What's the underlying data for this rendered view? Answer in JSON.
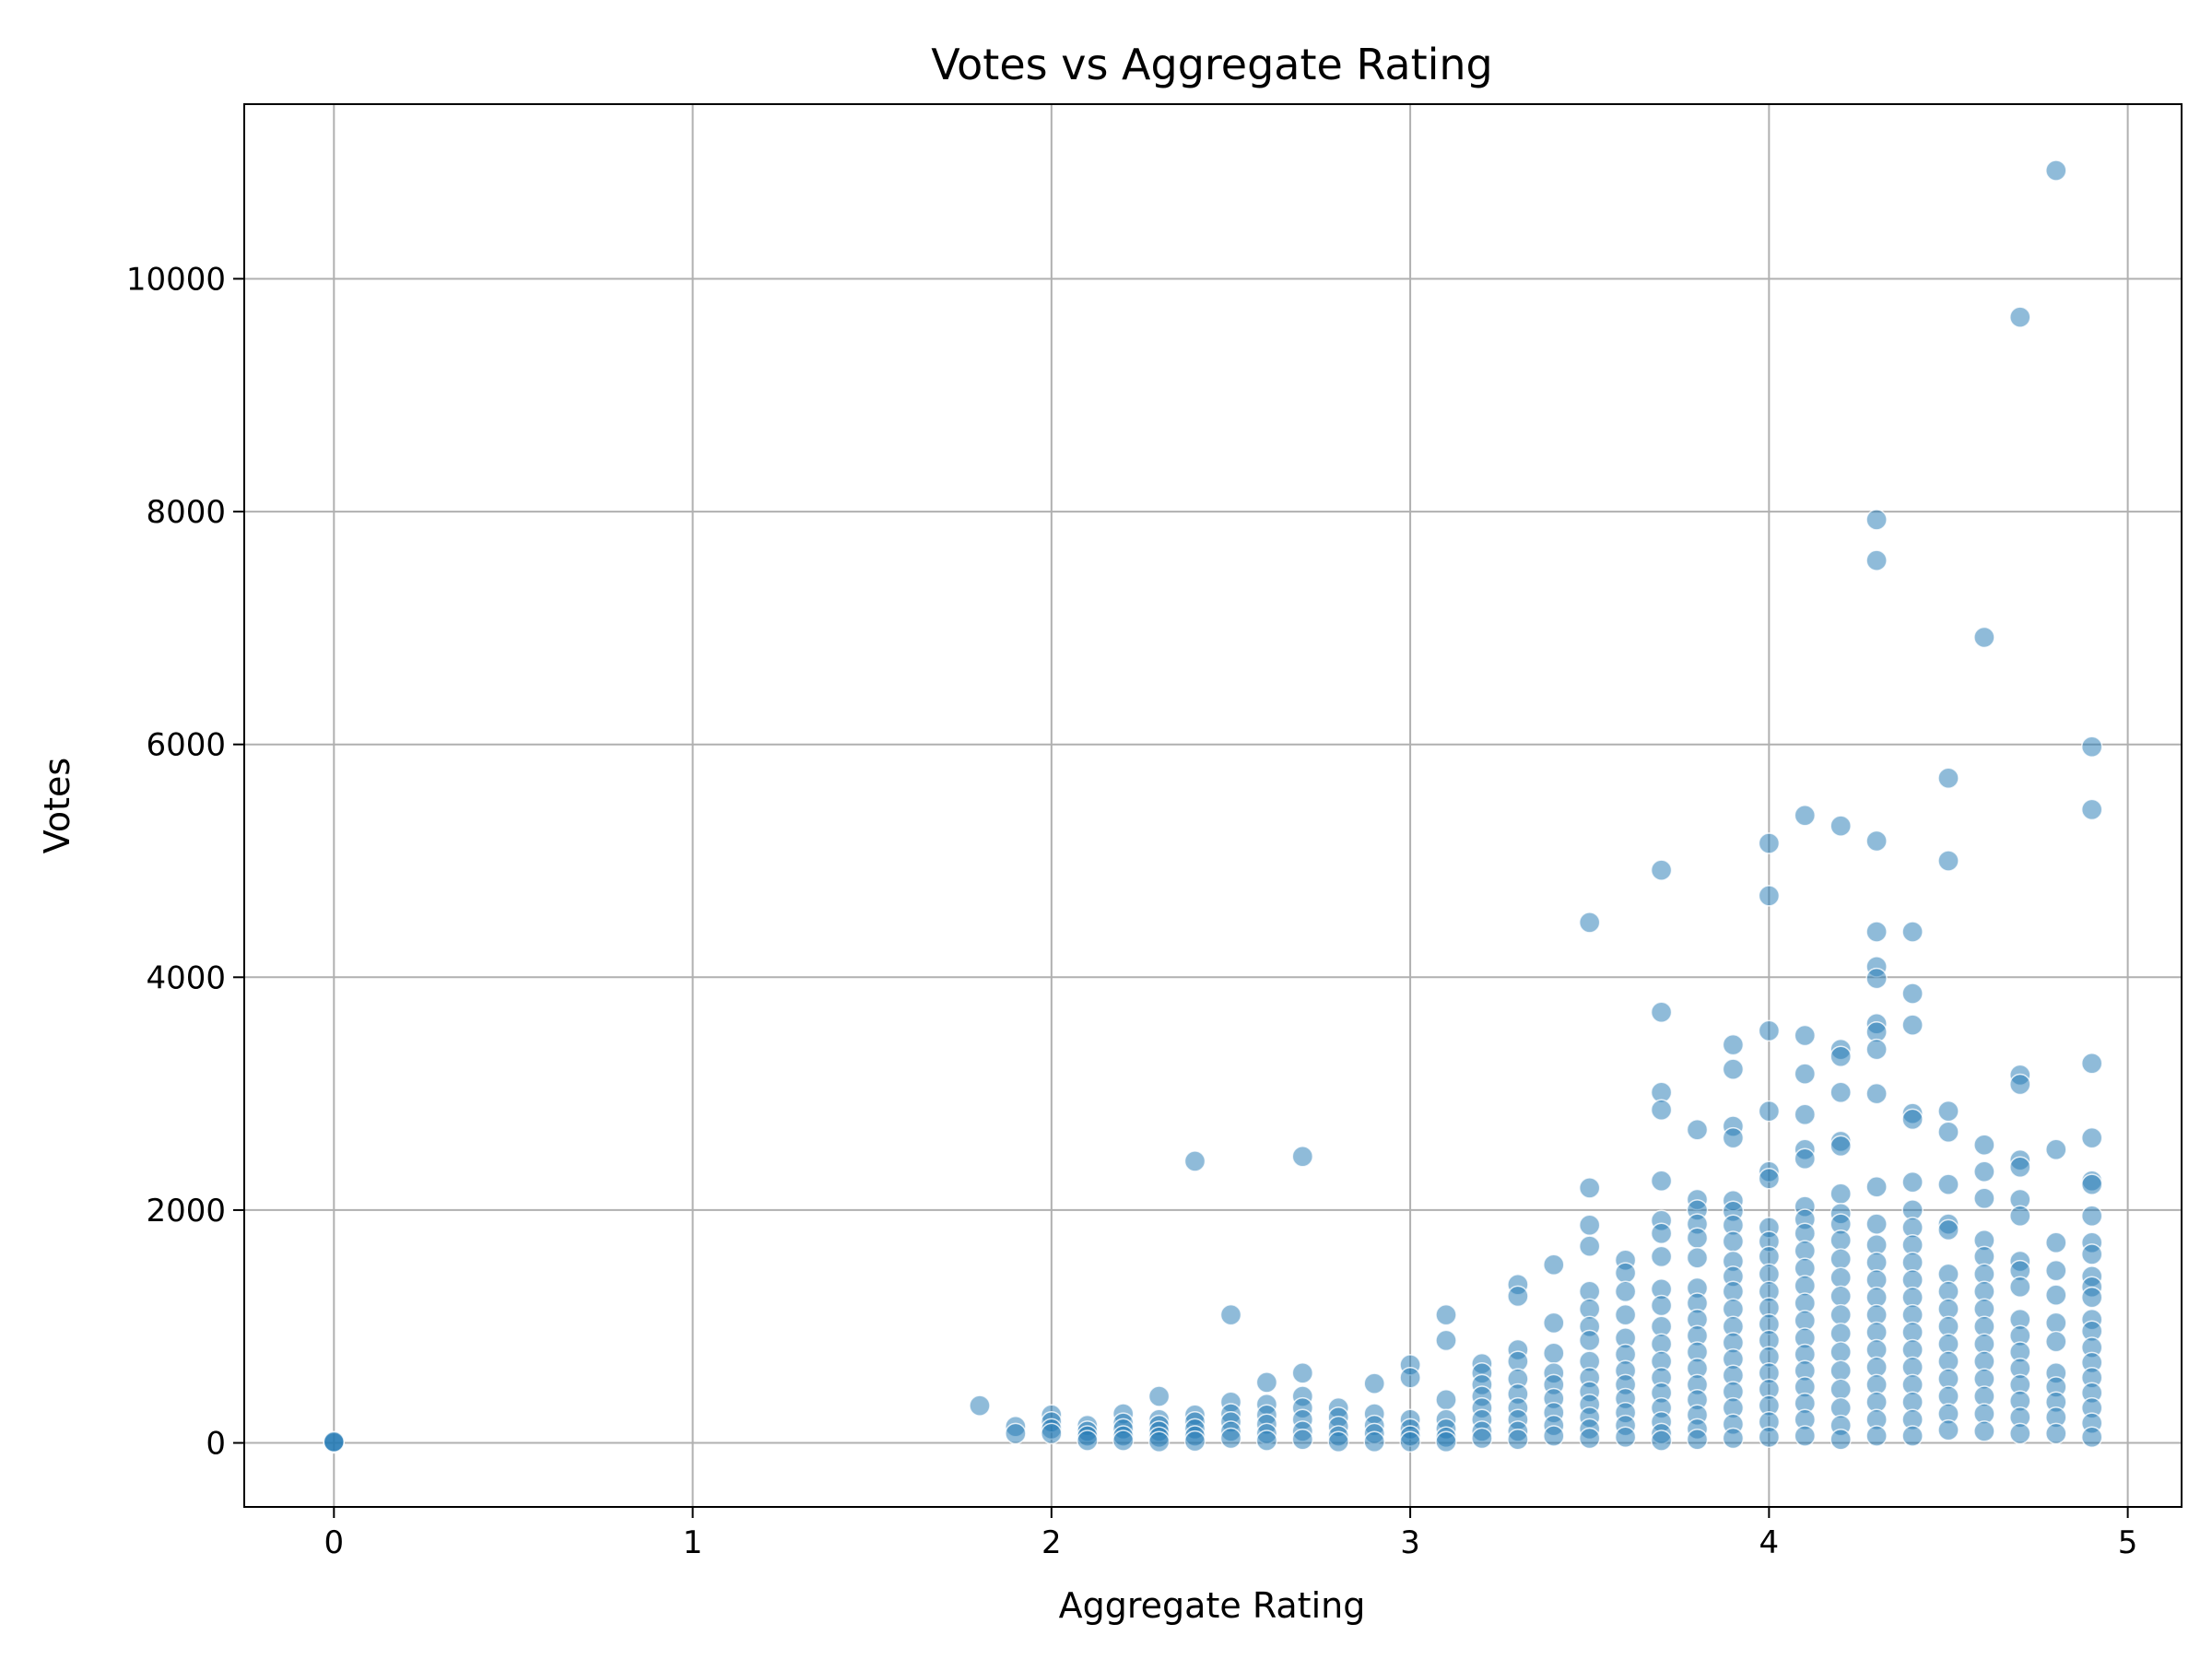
{
  "chart_data": {
    "type": "scatter",
    "title": "Votes vs Aggregate Rating",
    "xlabel": "Aggregate Rating",
    "ylabel": "Votes",
    "xlim": [
      -0.25,
      5.15
    ],
    "ylim": [
      -550,
      11500
    ],
    "xticks": [
      0,
      1,
      2,
      3,
      4,
      5
    ],
    "yticks": [
      0,
      2000,
      4000,
      6000,
      8000,
      10000
    ],
    "grid": true,
    "legend": "none",
    "point_color": "#1f77b4",
    "point_opacity": 0.5,
    "points": [
      [
        0,
        0
      ],
      [
        0,
        5
      ],
      [
        0,
        10
      ],
      [
        1.8,
        320
      ],
      [
        1.9,
        140
      ],
      [
        1.9,
        80
      ],
      [
        2.0,
        240
      ],
      [
        2.0,
        180
      ],
      [
        2.0,
        120
      ],
      [
        2.0,
        80
      ],
      [
        2.1,
        150
      ],
      [
        2.1,
        100
      ],
      [
        2.1,
        60
      ],
      [
        2.1,
        20
      ],
      [
        2.2,
        250
      ],
      [
        2.2,
        170
      ],
      [
        2.2,
        120
      ],
      [
        2.2,
        60
      ],
      [
        2.2,
        20
      ],
      [
        2.3,
        400
      ],
      [
        2.3,
        200
      ],
      [
        2.3,
        150
      ],
      [
        2.3,
        100
      ],
      [
        2.3,
        50
      ],
      [
        2.3,
        10
      ],
      [
        2.4,
        2420
      ],
      [
        2.4,
        240
      ],
      [
        2.4,
        180
      ],
      [
        2.4,
        120
      ],
      [
        2.4,
        60
      ],
      [
        2.4,
        15
      ],
      [
        2.5,
        1100
      ],
      [
        2.5,
        350
      ],
      [
        2.5,
        250
      ],
      [
        2.5,
        180
      ],
      [
        2.5,
        100
      ],
      [
        2.5,
        40
      ],
      [
        2.6,
        520
      ],
      [
        2.6,
        330
      ],
      [
        2.6,
        240
      ],
      [
        2.6,
        160
      ],
      [
        2.6,
        80
      ],
      [
        2.6,
        20
      ],
      [
        2.7,
        2460
      ],
      [
        2.7,
        600
      ],
      [
        2.7,
        400
      ],
      [
        2.7,
        300
      ],
      [
        2.7,
        200
      ],
      [
        2.7,
        100
      ],
      [
        2.7,
        30
      ],
      [
        2.8,
        300
      ],
      [
        2.8,
        220
      ],
      [
        2.8,
        140
      ],
      [
        2.8,
        60
      ],
      [
        2.8,
        10
      ],
      [
        2.9,
        510
      ],
      [
        2.9,
        250
      ],
      [
        2.9,
        150
      ],
      [
        2.9,
        80
      ],
      [
        2.9,
        10
      ],
      [
        3.0,
        670
      ],
      [
        3.0,
        560
      ],
      [
        3.0,
        200
      ],
      [
        3.0,
        120
      ],
      [
        3.0,
        60
      ],
      [
        3.0,
        10
      ],
      [
        3.1,
        1100
      ],
      [
        3.1,
        880
      ],
      [
        3.1,
        370
      ],
      [
        3.1,
        200
      ],
      [
        3.1,
        120
      ],
      [
        3.1,
        50
      ],
      [
        3.1,
        10
      ],
      [
        3.2,
        680
      ],
      [
        3.2,
        600
      ],
      [
        3.2,
        500
      ],
      [
        3.2,
        400
      ],
      [
        3.2,
        300
      ],
      [
        3.2,
        200
      ],
      [
        3.2,
        100
      ],
      [
        3.2,
        40
      ],
      [
        3.3,
        1360
      ],
      [
        3.3,
        1260
      ],
      [
        3.3,
        800
      ],
      [
        3.3,
        700
      ],
      [
        3.3,
        550
      ],
      [
        3.3,
        420
      ],
      [
        3.3,
        300
      ],
      [
        3.3,
        200
      ],
      [
        3.3,
        100
      ],
      [
        3.3,
        30
      ],
      [
        3.4,
        1530
      ],
      [
        3.4,
        1030
      ],
      [
        3.4,
        770
      ],
      [
        3.4,
        600
      ],
      [
        3.4,
        500
      ],
      [
        3.4,
        380
      ],
      [
        3.4,
        260
      ],
      [
        3.4,
        150
      ],
      [
        3.4,
        60
      ],
      [
        3.5,
        4470
      ],
      [
        3.5,
        2190
      ],
      [
        3.5,
        1870
      ],
      [
        3.5,
        1690
      ],
      [
        3.5,
        1300
      ],
      [
        3.5,
        1150
      ],
      [
        3.5,
        1000
      ],
      [
        3.5,
        880
      ],
      [
        3.5,
        700
      ],
      [
        3.5,
        560
      ],
      [
        3.5,
        440
      ],
      [
        3.5,
        330
      ],
      [
        3.5,
        220
      ],
      [
        3.5,
        120
      ],
      [
        3.5,
        40
      ],
      [
        3.6,
        1570
      ],
      [
        3.6,
        1460
      ],
      [
        3.6,
        1300
      ],
      [
        3.6,
        1100
      ],
      [
        3.6,
        900
      ],
      [
        3.6,
        760
      ],
      [
        3.6,
        620
      ],
      [
        3.6,
        500
      ],
      [
        3.6,
        380
      ],
      [
        3.6,
        260
      ],
      [
        3.6,
        150
      ],
      [
        3.6,
        50
      ],
      [
        3.7,
        4920
      ],
      [
        3.7,
        3700
      ],
      [
        3.7,
        3010
      ],
      [
        3.7,
        2860
      ],
      [
        3.7,
        2250
      ],
      [
        3.7,
        1910
      ],
      [
        3.7,
        1800
      ],
      [
        3.7,
        1600
      ],
      [
        3.7,
        1320
      ],
      [
        3.7,
        1180
      ],
      [
        3.7,
        1000
      ],
      [
        3.7,
        850
      ],
      [
        3.7,
        700
      ],
      [
        3.7,
        560
      ],
      [
        3.7,
        430
      ],
      [
        3.7,
        300
      ],
      [
        3.7,
        180
      ],
      [
        3.7,
        80
      ],
      [
        3.7,
        20
      ],
      [
        3.8,
        2690
      ],
      [
        3.8,
        2090
      ],
      [
        3.8,
        2000
      ],
      [
        3.8,
        1880
      ],
      [
        3.8,
        1760
      ],
      [
        3.8,
        1590
      ],
      [
        3.8,
        1330
      ],
      [
        3.8,
        1200
      ],
      [
        3.8,
        1060
      ],
      [
        3.8,
        920
      ],
      [
        3.8,
        780
      ],
      [
        3.8,
        640
      ],
      [
        3.8,
        500
      ],
      [
        3.8,
        370
      ],
      [
        3.8,
        240
      ],
      [
        3.8,
        120
      ],
      [
        3.8,
        30
      ],
      [
        3.9,
        3420
      ],
      [
        3.9,
        3210
      ],
      [
        3.9,
        2720
      ],
      [
        3.9,
        2620
      ],
      [
        3.9,
        2080
      ],
      [
        3.9,
        1990
      ],
      [
        3.9,
        1870
      ],
      [
        3.9,
        1730
      ],
      [
        3.9,
        1560
      ],
      [
        3.9,
        1430
      ],
      [
        3.9,
        1300
      ],
      [
        3.9,
        1150
      ],
      [
        3.9,
        1000
      ],
      [
        3.9,
        860
      ],
      [
        3.9,
        720
      ],
      [
        3.9,
        580
      ],
      [
        3.9,
        440
      ],
      [
        3.9,
        300
      ],
      [
        3.9,
        160
      ],
      [
        3.9,
        40
      ],
      [
        4.0,
        5150
      ],
      [
        4.0,
        4700
      ],
      [
        4.0,
        3540
      ],
      [
        4.0,
        2850
      ],
      [
        4.0,
        2330
      ],
      [
        4.0,
        2270
      ],
      [
        4.0,
        1850
      ],
      [
        4.0,
        1730
      ],
      [
        4.0,
        1600
      ],
      [
        4.0,
        1450
      ],
      [
        4.0,
        1300
      ],
      [
        4.0,
        1160
      ],
      [
        4.0,
        1020
      ],
      [
        4.0,
        880
      ],
      [
        4.0,
        740
      ],
      [
        4.0,
        600
      ],
      [
        4.0,
        460
      ],
      [
        4.0,
        320
      ],
      [
        4.0,
        180
      ],
      [
        4.0,
        50
      ],
      [
        4.1,
        5390
      ],
      [
        4.1,
        3500
      ],
      [
        4.1,
        3170
      ],
      [
        4.1,
        2820
      ],
      [
        4.1,
        2520
      ],
      [
        4.1,
        2440
      ],
      [
        4.1,
        2030
      ],
      [
        4.1,
        1920
      ],
      [
        4.1,
        1800
      ],
      [
        4.1,
        1650
      ],
      [
        4.1,
        1500
      ],
      [
        4.1,
        1350
      ],
      [
        4.1,
        1200
      ],
      [
        4.1,
        1050
      ],
      [
        4.1,
        900
      ],
      [
        4.1,
        760
      ],
      [
        4.1,
        620
      ],
      [
        4.1,
        480
      ],
      [
        4.1,
        340
      ],
      [
        4.1,
        200
      ],
      [
        4.1,
        60
      ],
      [
        4.2,
        5300
      ],
      [
        4.2,
        3380
      ],
      [
        4.2,
        3320
      ],
      [
        4.2,
        3010
      ],
      [
        4.2,
        2590
      ],
      [
        4.2,
        2550
      ],
      [
        4.2,
        2140
      ],
      [
        4.2,
        1970
      ],
      [
        4.2,
        1880
      ],
      [
        4.2,
        1740
      ],
      [
        4.2,
        1580
      ],
      [
        4.2,
        1420
      ],
      [
        4.2,
        1260
      ],
      [
        4.2,
        1100
      ],
      [
        4.2,
        940
      ],
      [
        4.2,
        780
      ],
      [
        4.2,
        620
      ],
      [
        4.2,
        460
      ],
      [
        4.2,
        300
      ],
      [
        4.2,
        150
      ],
      [
        4.2,
        30
      ],
      [
        4.3,
        7930
      ],
      [
        4.3,
        7580
      ],
      [
        4.3,
        5170
      ],
      [
        4.3,
        4390
      ],
      [
        4.3,
        4090
      ],
      [
        4.3,
        3990
      ],
      [
        4.3,
        3600
      ],
      [
        4.3,
        3530
      ],
      [
        4.3,
        3380
      ],
      [
        4.3,
        3000
      ],
      [
        4.3,
        2200
      ],
      [
        4.3,
        1880
      ],
      [
        4.3,
        1700
      ],
      [
        4.3,
        1550
      ],
      [
        4.3,
        1400
      ],
      [
        4.3,
        1250
      ],
      [
        4.3,
        1100
      ],
      [
        4.3,
        950
      ],
      [
        4.3,
        800
      ],
      [
        4.3,
        650
      ],
      [
        4.3,
        500
      ],
      [
        4.3,
        350
      ],
      [
        4.3,
        200
      ],
      [
        4.3,
        60
      ],
      [
        4.4,
        4390
      ],
      [
        4.4,
        3860
      ],
      [
        4.4,
        3590
      ],
      [
        4.4,
        2830
      ],
      [
        4.4,
        2780
      ],
      [
        4.4,
        2240
      ],
      [
        4.4,
        2000
      ],
      [
        4.4,
        1850
      ],
      [
        4.4,
        1700
      ],
      [
        4.4,
        1550
      ],
      [
        4.4,
        1400
      ],
      [
        4.4,
        1250
      ],
      [
        4.4,
        1100
      ],
      [
        4.4,
        950
      ],
      [
        4.4,
        800
      ],
      [
        4.4,
        650
      ],
      [
        4.4,
        500
      ],
      [
        4.4,
        350
      ],
      [
        4.4,
        200
      ],
      [
        4.4,
        60
      ],
      [
        4.5,
        5710
      ],
      [
        4.5,
        5000
      ],
      [
        4.5,
        2850
      ],
      [
        4.5,
        2670
      ],
      [
        4.5,
        2220
      ],
      [
        4.5,
        1880
      ],
      [
        4.5,
        1830
      ],
      [
        4.5,
        1450
      ],
      [
        4.5,
        1300
      ],
      [
        4.5,
        1150
      ],
      [
        4.5,
        1000
      ],
      [
        4.5,
        850
      ],
      [
        4.5,
        700
      ],
      [
        4.5,
        550
      ],
      [
        4.5,
        400
      ],
      [
        4.5,
        250
      ],
      [
        4.5,
        110
      ],
      [
        4.6,
        6920
      ],
      [
        4.6,
        2560
      ],
      [
        4.6,
        2330
      ],
      [
        4.6,
        2100
      ],
      [
        4.6,
        1740
      ],
      [
        4.6,
        1600
      ],
      [
        4.6,
        1450
      ],
      [
        4.6,
        1300
      ],
      [
        4.6,
        1150
      ],
      [
        4.6,
        1000
      ],
      [
        4.6,
        850
      ],
      [
        4.6,
        700
      ],
      [
        4.6,
        550
      ],
      [
        4.6,
        400
      ],
      [
        4.6,
        250
      ],
      [
        4.6,
        100
      ],
      [
        4.7,
        9670
      ],
      [
        4.7,
        3160
      ],
      [
        4.7,
        3080
      ],
      [
        4.7,
        2430
      ],
      [
        4.7,
        2370
      ],
      [
        4.7,
        2090
      ],
      [
        4.7,
        1950
      ],
      [
        4.7,
        1560
      ],
      [
        4.7,
        1480
      ],
      [
        4.7,
        1340
      ],
      [
        4.7,
        1060
      ],
      [
        4.7,
        920
      ],
      [
        4.7,
        780
      ],
      [
        4.7,
        640
      ],
      [
        4.7,
        500
      ],
      [
        4.7,
        360
      ],
      [
        4.7,
        220
      ],
      [
        4.7,
        80
      ],
      [
        4.8,
        10930
      ],
      [
        4.8,
        2520
      ],
      [
        4.8,
        1720
      ],
      [
        4.8,
        1480
      ],
      [
        4.8,
        1270
      ],
      [
        4.8,
        1030
      ],
      [
        4.8,
        870
      ],
      [
        4.8,
        600
      ],
      [
        4.8,
        480
      ],
      [
        4.8,
        350
      ],
      [
        4.8,
        220
      ],
      [
        4.8,
        80
      ],
      [
        4.9,
        5980
      ],
      [
        4.9,
        5440
      ],
      [
        4.9,
        3260
      ],
      [
        4.9,
        2620
      ],
      [
        4.9,
        2250
      ],
      [
        4.9,
        2220
      ],
      [
        4.9,
        1950
      ],
      [
        4.9,
        1720
      ],
      [
        4.9,
        1620
      ],
      [
        4.9,
        1430
      ],
      [
        4.9,
        1340
      ],
      [
        4.9,
        1250
      ],
      [
        4.9,
        1060
      ],
      [
        4.9,
        960
      ],
      [
        4.9,
        820
      ],
      [
        4.9,
        690
      ],
      [
        4.9,
        560
      ],
      [
        4.9,
        430
      ],
      [
        4.9,
        300
      ],
      [
        4.9,
        170
      ],
      [
        4.9,
        50
      ]
    ]
  }
}
